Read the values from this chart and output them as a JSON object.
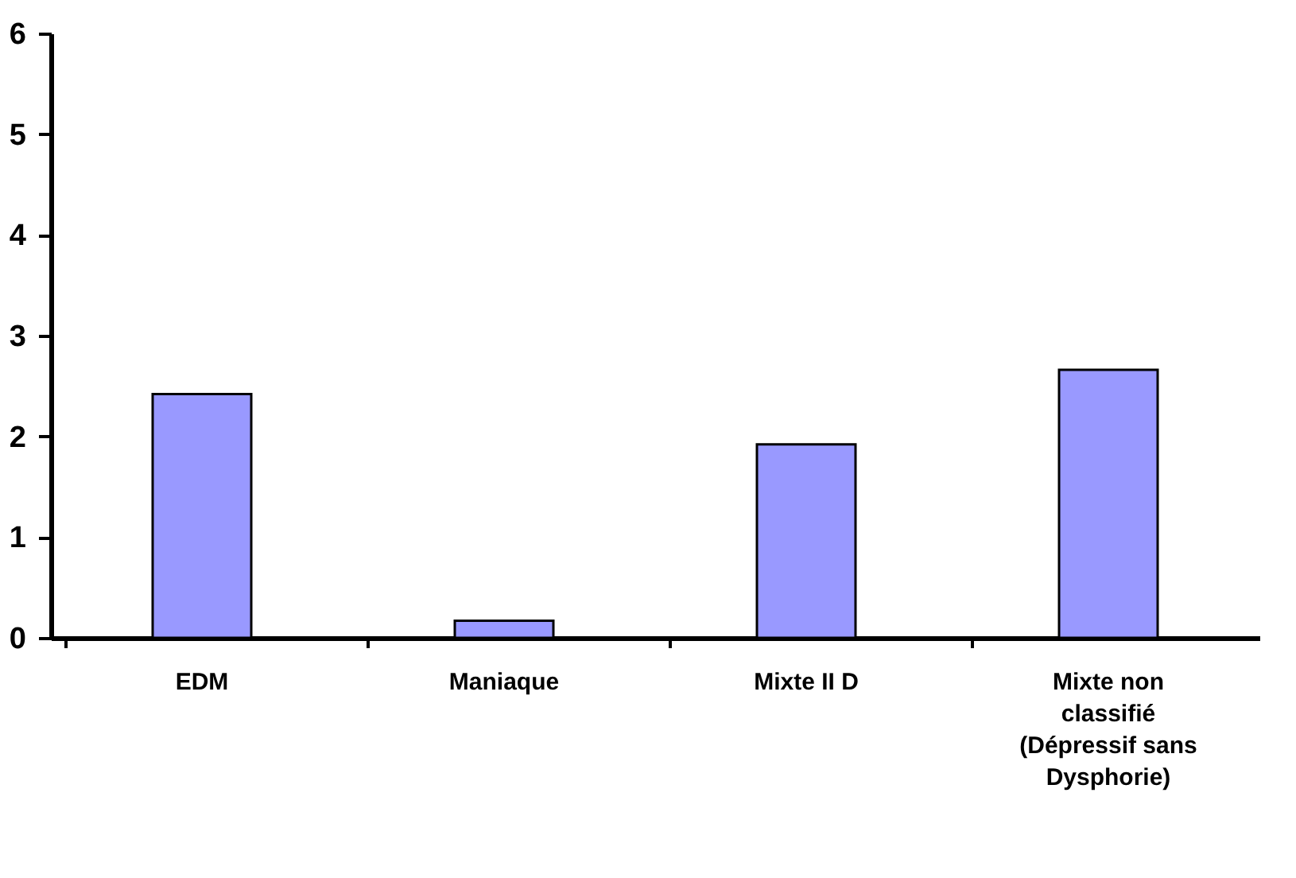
{
  "chart_data": {
    "type": "bar",
    "categories": [
      "EDM",
      "Maniaque",
      "Mixte II D",
      "Mixte non classifié (Dépressif sans Dysphorie)"
    ],
    "values": [
      2.42,
      0.17,
      1.92,
      2.66
    ],
    "color": "#9999ff",
    "ylim": [
      0,
      6
    ],
    "yticks": [
      0,
      1,
      2,
      3,
      4,
      5,
      6
    ],
    "grid": false
  }
}
